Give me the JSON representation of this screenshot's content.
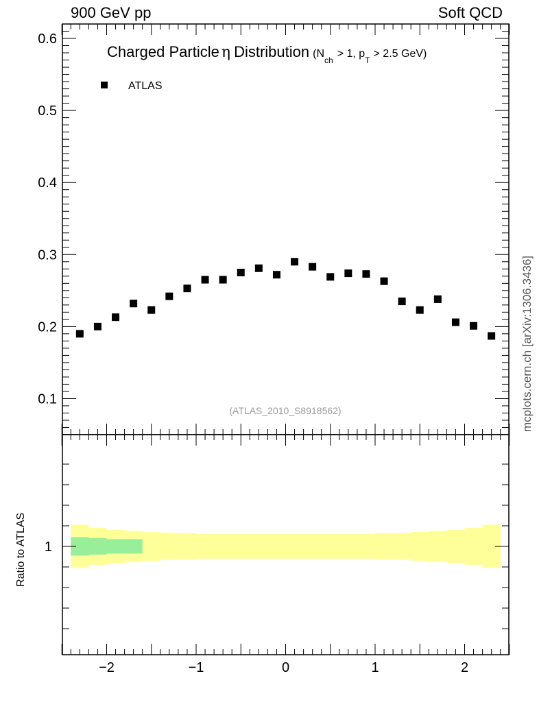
{
  "header": {
    "energy": "900 GeV pp",
    "category": "Soft QCD"
  },
  "title": {
    "main": "Charged Particle",
    "eta": "η",
    "main2": "Distribution",
    "cut_open": "(N",
    "cut_ch": "ch",
    "cut_mid": "> 1, p",
    "cut_T": "T",
    "cut_close": "> 2.5 GeV)"
  },
  "side_note": "mcplots.cern.ch [arXiv:1306.3436]",
  "analysis_id": "(ATLAS_2010_S8918562)",
  "ratio_label": "Ratio to ATLAS",
  "chart_data": {
    "type": "scatter",
    "title": "Charged Particle η Distribution (N_ch > 1, p_T > 2.5 GeV)",
    "xlabel": "",
    "ylabel": "",
    "xlim": [
      -2.5,
      2.5
    ],
    "ylim": [
      0.05,
      0.62
    ],
    "grid": false,
    "legend_position": "top-left",
    "main_yticks": [
      "0.1",
      "0.2",
      "0.3",
      "0.4",
      "0.5",
      "0.6"
    ],
    "xticks": [
      "−2",
      "−1",
      "0",
      "1",
      "2"
    ],
    "series": [
      {
        "name": "ATLAS",
        "color": "#000000",
        "marker": "square",
        "x": [
          -2.3,
          -2.1,
          -1.9,
          -1.7,
          -1.5,
          -1.3,
          -1.1,
          -0.9,
          -0.7,
          -0.5,
          -0.3,
          -0.1,
          0.1,
          0.3,
          0.5,
          0.7,
          0.9,
          1.1,
          1.3,
          1.5,
          1.7,
          1.9,
          2.1,
          2.3
        ],
        "y": [
          0.19,
          0.2,
          0.213,
          0.232,
          0.223,
          0.242,
          0.253,
          0.265,
          0.265,
          0.275,
          0.281,
          0.272,
          0.29,
          0.283,
          0.269,
          0.274,
          0.273,
          0.263,
          0.235,
          0.223,
          0.238,
          0.206,
          0.201,
          0.187
        ]
      }
    ],
    "ratio": {
      "ylabel": "Ratio to ATLAS",
      "yticks": [
        "1"
      ],
      "ylim": [
        0.5,
        1.5
      ],
      "yellow_band": {
        "color": "#ffff99",
        "x_edges": [
          -2.4,
          -2.2,
          -2.0,
          -1.8,
          -1.6,
          -1.4,
          -1.2,
          -1.0,
          -0.8,
          -0.6,
          -0.4,
          -0.2,
          0.0,
          0.2,
          0.4,
          0.6,
          0.8,
          1.0,
          1.2,
          1.4,
          1.6,
          1.8,
          2.0,
          2.2,
          2.4
        ],
        "half_width": [
          0.105,
          0.09,
          0.08,
          0.075,
          0.07,
          0.065,
          0.065,
          0.06,
          0.06,
          0.06,
          0.06,
          0.06,
          0.06,
          0.06,
          0.06,
          0.06,
          0.06,
          0.065,
          0.065,
          0.07,
          0.075,
          0.08,
          0.09,
          0.105
        ]
      },
      "green_band": {
        "color": "#99ee99",
        "x_edges": [
          -2.4,
          -2.2,
          -2.0,
          -1.8,
          -1.6
        ],
        "half_width": [
          0.045,
          0.04,
          0.035,
          0.035
        ]
      }
    }
  }
}
